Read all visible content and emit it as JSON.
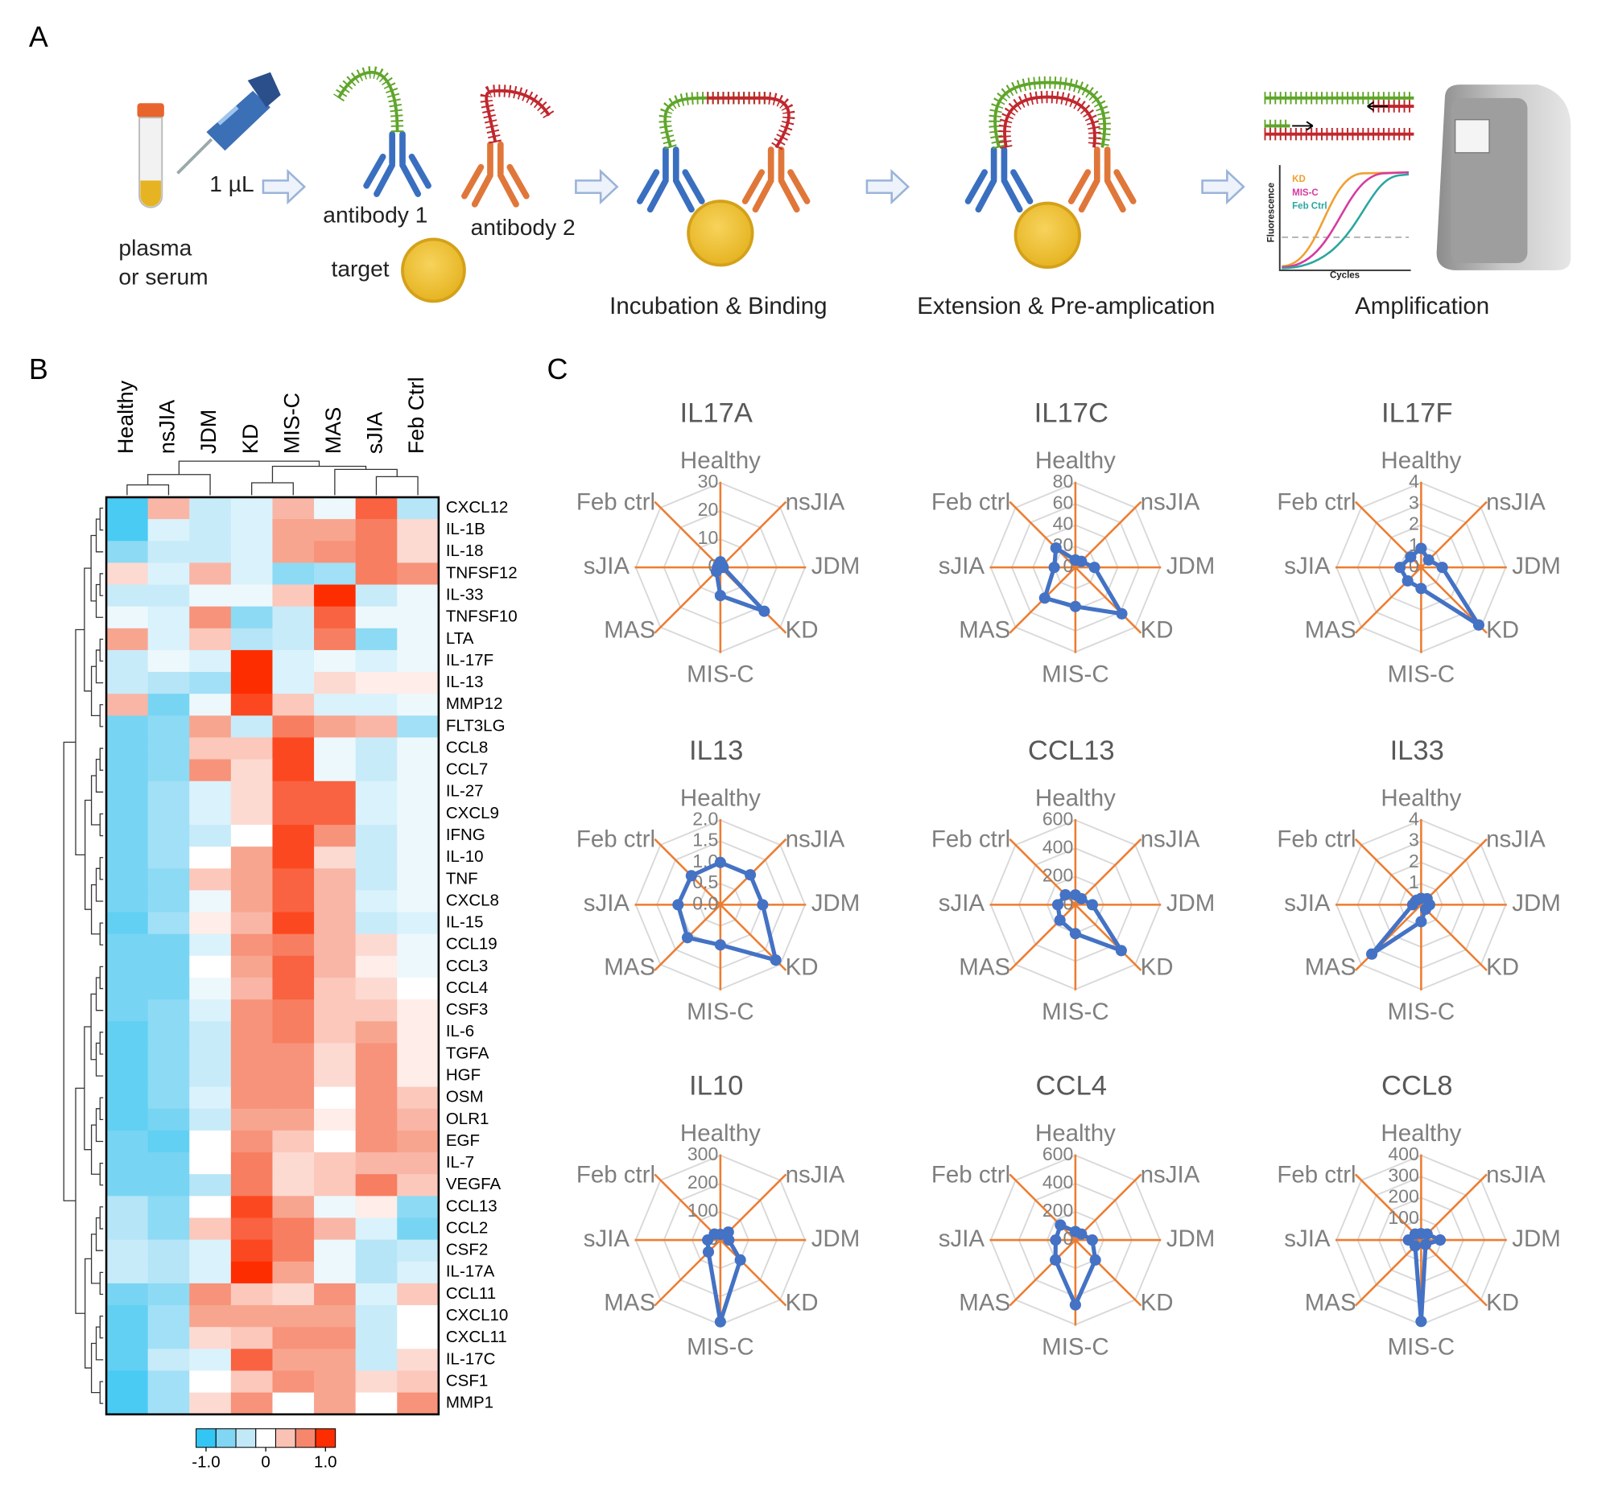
{
  "panel_a": {
    "label": "A",
    "volume": "1 µL",
    "sample": [
      "plasma",
      "or serum"
    ],
    "antibody1": "antibody 1",
    "antibody2": "antibody 2",
    "target": "target",
    "steps": [
      "Incubation & Binding",
      "Extension & Pre-amplication",
      "Amplification"
    ],
    "plot": {
      "y_label": "Fluorescence",
      "x_label": "Cycles",
      "legend": [
        "KD",
        "MIS-C",
        "Feb Ctrl"
      ]
    }
  },
  "panel_b": {
    "label": "B",
    "columns": [
      "Healthy",
      "nsJIA",
      "JDM",
      "KD",
      "MIS-C",
      "MAS",
      "sJIA",
      "Feb Ctrl"
    ],
    "rows": [
      "CXCL12",
      "IL-1B",
      "IL-18",
      "TNFSF12",
      "IL-33",
      "TNFSF10",
      "LTA",
      "IL-17F",
      "IL-13",
      "MMP12",
      "FLT3LG",
      "CCL8",
      "CCL7",
      "IL-27",
      "CXCL9",
      "IFNG",
      "IL-10",
      "TNF",
      "CXCL8",
      "IL-15",
      "CCL19",
      "CCL3",
      "CCL4",
      "CSF3",
      "IL-6",
      "TGFA",
      "HGF",
      "OSM",
      "OLR1",
      "EGF",
      "IL-7",
      "VEGFA",
      "CCL13",
      "CCL2",
      "CSF2",
      "IL-17A",
      "CCL11",
      "CXCL10",
      "CXCL11",
      "IL-17C",
      "CSF1",
      "MMP1"
    ],
    "values": [
      [
        -0.9,
        0.4,
        -0.3,
        -0.2,
        0.4,
        -0.1,
        0.8,
        -0.4
      ],
      [
        -0.9,
        -0.2,
        -0.3,
        -0.2,
        0.5,
        0.5,
        0.7,
        0.2
      ],
      [
        -0.6,
        -0.3,
        -0.3,
        -0.2,
        0.5,
        0.6,
        0.7,
        0.2
      ],
      [
        0.2,
        -0.2,
        0.4,
        -0.2,
        -0.6,
        -0.5,
        0.7,
        0.6
      ],
      [
        -0.3,
        -0.3,
        -0.1,
        -0.1,
        0.3,
        1.0,
        -0.3,
        -0.1
      ],
      [
        -0.1,
        -0.2,
        0.6,
        -0.6,
        -0.3,
        0.8,
        -0.1,
        -0.1
      ],
      [
        0.5,
        -0.2,
        0.3,
        -0.4,
        -0.3,
        0.7,
        -0.6,
        -0.1
      ],
      [
        -0.3,
        -0.1,
        -0.2,
        1.0,
        -0.2,
        -0.1,
        -0.2,
        -0.1
      ],
      [
        -0.3,
        -0.4,
        -0.5,
        1.0,
        -0.2,
        0.2,
        0.1,
        0.1
      ],
      [
        0.4,
        -0.7,
        -0.1,
        0.9,
        0.3,
        -0.2,
        -0.2,
        -0.1
      ],
      [
        -0.7,
        -0.6,
        0.5,
        -0.3,
        0.7,
        0.5,
        0.4,
        -0.5
      ],
      [
        -0.7,
        -0.6,
        0.3,
        0.3,
        0.9,
        -0.1,
        -0.3,
        -0.1
      ],
      [
        -0.7,
        -0.6,
        0.6,
        0.2,
        0.9,
        -0.1,
        -0.3,
        -0.1
      ],
      [
        -0.7,
        -0.5,
        -0.2,
        0.2,
        0.8,
        0.8,
        -0.2,
        -0.1
      ],
      [
        -0.7,
        -0.5,
        -0.2,
        0.2,
        0.8,
        0.8,
        -0.2,
        -0.1
      ],
      [
        -0.7,
        -0.5,
        -0.3,
        0.0,
        0.9,
        0.6,
        -0.3,
        -0.1
      ],
      [
        -0.7,
        -0.5,
        0.0,
        0.5,
        0.9,
        0.2,
        -0.3,
        -0.1
      ],
      [
        -0.7,
        -0.6,
        0.3,
        0.5,
        0.8,
        0.4,
        -0.3,
        -0.1
      ],
      [
        -0.7,
        -0.6,
        -0.1,
        0.5,
        0.8,
        0.4,
        -0.2,
        -0.1
      ],
      [
        -0.8,
        -0.5,
        0.1,
        0.4,
        0.9,
        0.4,
        -0.3,
        -0.2
      ],
      [
        -0.7,
        -0.7,
        -0.2,
        0.6,
        0.7,
        0.4,
        0.2,
        -0.1
      ],
      [
        -0.7,
        -0.7,
        0.0,
        0.5,
        0.8,
        0.4,
        0.1,
        -0.1
      ],
      [
        -0.7,
        -0.7,
        -0.1,
        0.4,
        0.8,
        0.3,
        0.2,
        0.0
      ],
      [
        -0.7,
        -0.6,
        -0.2,
        0.6,
        0.7,
        0.3,
        0.3,
        0.1
      ],
      [
        -0.8,
        -0.6,
        -0.3,
        0.6,
        0.7,
        0.3,
        0.5,
        0.1
      ],
      [
        -0.8,
        -0.6,
        -0.3,
        0.6,
        0.6,
        0.2,
        0.6,
        0.1
      ],
      [
        -0.8,
        -0.6,
        -0.3,
        0.6,
        0.6,
        0.2,
        0.6,
        0.1
      ],
      [
        -0.8,
        -0.6,
        -0.2,
        0.6,
        0.6,
        0.0,
        0.6,
        0.3
      ],
      [
        -0.8,
        -0.7,
        -0.3,
        0.5,
        0.5,
        0.1,
        0.6,
        0.4
      ],
      [
        -0.7,
        -0.8,
        0.0,
        0.6,
        0.3,
        0.0,
        0.6,
        0.5
      ],
      [
        -0.7,
        -0.7,
        0.0,
        0.7,
        0.2,
        0.3,
        0.4,
        0.4
      ],
      [
        -0.7,
        -0.7,
        -0.4,
        0.7,
        0.2,
        0.3,
        0.7,
        0.3
      ],
      [
        -0.4,
        -0.6,
        0.0,
        0.9,
        0.5,
        -0.1,
        0.1,
        -0.6
      ],
      [
        -0.4,
        -0.6,
        0.3,
        0.8,
        0.7,
        0.4,
        -0.2,
        -0.7
      ],
      [
        -0.3,
        -0.4,
        -0.2,
        0.9,
        0.7,
        -0.1,
        -0.4,
        -0.3
      ],
      [
        -0.3,
        -0.4,
        -0.2,
        1.0,
        0.5,
        -0.1,
        -0.4,
        -0.2
      ],
      [
        -0.7,
        -0.6,
        0.6,
        0.3,
        0.2,
        0.6,
        -0.2,
        0.3
      ],
      [
        -0.8,
        -0.5,
        0.5,
        0.5,
        0.5,
        0.5,
        -0.3,
        0.0
      ],
      [
        -0.8,
        -0.5,
        0.2,
        0.3,
        0.6,
        0.6,
        -0.3,
        0.0
      ],
      [
        -0.8,
        -0.3,
        -0.2,
        0.8,
        0.5,
        0.5,
        -0.3,
        0.2
      ],
      [
        -0.9,
        -0.5,
        0.0,
        0.3,
        0.6,
        0.5,
        0.2,
        0.3
      ],
      [
        -0.9,
        -0.5,
        0.2,
        0.6,
        0.0,
        0.5,
        0.0,
        0.6
      ]
    ],
    "clim": [
      -1,
      1
    ],
    "colors": [
      "#33c6f4",
      "#80d6f3",
      "#c2e9f8",
      "#ffffff",
      "#fac2b4",
      "#f6876c",
      "#fe2d00"
    ],
    "colorbar_ticks": [
      {
        "value": -1,
        "label": "-1.0"
      },
      0,
      {
        "value": 1,
        "label": "1.0"
      }
    ]
  },
  "panel_c": {
    "label": "C",
    "axes": [
      "Healthy",
      "nsJIA",
      "JDM",
      "KD",
      "MIS-C",
      "MAS",
      "sJIA",
      "Feb ctrl"
    ],
    "line_color": "#4472c4",
    "spoke_color": "#ed7d31",
    "ring_color": "#d9d9d9",
    "charts": [
      {
        "title": "IL17A",
        "rlim": [
          0,
          30
        ],
        "rticks": [
          0,
          10,
          20,
          30
        ],
        "values": [
          2,
          1,
          1,
          22,
          10,
          2,
          1,
          1
        ]
      },
      {
        "title": "IL17C",
        "rlim": [
          0,
          80
        ],
        "rticks": [
          0,
          20,
          40,
          60,
          80
        ],
        "values": [
          7,
          8,
          18,
          62,
          37,
          41,
          20,
          26
        ]
      },
      {
        "title": "IL17F",
        "rlim": [
          0,
          4
        ],
        "rticks": [
          0,
          1,
          2,
          3,
          4
        ],
        "values": [
          0.9,
          0.5,
          1.0,
          3.85,
          1.0,
          0.9,
          1.0,
          0.7
        ]
      },
      {
        "title": "IL13",
        "rlim": [
          0,
          2
        ],
        "rticks": [
          {
            "value": 0,
            "label": "0.0"
          },
          0.5,
          {
            "value": 1,
            "label": "1.0"
          },
          1.5,
          {
            "value": 2,
            "label": "2.0"
          }
        ],
        "values": [
          1.0,
          1.0,
          1.0,
          1.85,
          0.95,
          1.1,
          1.0,
          0.97
        ]
      },
      {
        "title": "CCL13",
        "rlim": [
          0,
          600
        ],
        "rticks": [
          0,
          200,
          400,
          600
        ],
        "values": [
          70,
          60,
          120,
          460,
          205,
          155,
          125,
          100
        ]
      },
      {
        "title": "IL33",
        "rlim": [
          0,
          4
        ],
        "rticks": [
          0,
          1,
          2,
          3,
          4
        ],
        "values": [
          0.3,
          0.4,
          0.4,
          0.3,
          0.8,
          3.3,
          0.4,
          0.3
        ]
      },
      {
        "title": "IL10",
        "rlim": [
          0,
          300
        ],
        "rticks": [
          0,
          100,
          200,
          300
        ],
        "values": [
          20,
          40,
          30,
          100,
          290,
          60,
          45,
          30
        ]
      },
      {
        "title": "CCL4",
        "rlim": [
          0,
          600
        ],
        "rticks": [
          0,
          200,
          400,
          600
        ],
        "values": [
          60,
          60,
          120,
          200,
          460,
          200,
          140,
          150
        ]
      },
      {
        "title": "CCL8",
        "rlim": [
          0,
          400
        ],
        "rticks": [
          0,
          100,
          200,
          300,
          400
        ],
        "values": [
          30,
          40,
          90,
          30,
          385,
          40,
          60,
          40
        ]
      }
    ]
  }
}
